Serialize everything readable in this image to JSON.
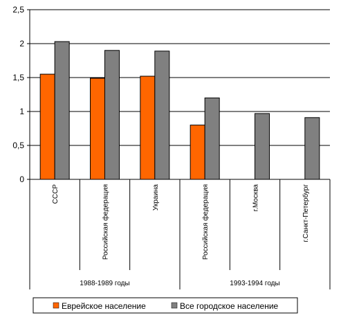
{
  "chart_data": {
    "type": "bar",
    "categories": [
      "СССР",
      "Российская федерация",
      "Украина",
      "Российская федерация",
      "г.Москва",
      "г.Санкт-Петербург"
    ],
    "groups": [
      {
        "label": "1988-1989 годы",
        "categories": [
          "СССР",
          "Российская федерация",
          "Украина"
        ]
      },
      {
        "label": "1993-1994 годы",
        "categories": [
          "Российская федерация",
          "г.Москва",
          "г.Санкт-Петербург"
        ]
      }
    ],
    "series": [
      {
        "name": "Еврейское население",
        "color": "#ff6600",
        "values": [
          1.55,
          1.49,
          1.52,
          0.8,
          null,
          null
        ]
      },
      {
        "name": "Все городское население",
        "color": "#808080",
        "values": [
          2.03,
          1.9,
          1.89,
          1.2,
          0.97,
          0.91
        ]
      }
    ],
    "yticks": [
      "0",
      "0,5",
      "1",
      "1,5",
      "2",
      "2,5"
    ],
    "ylim": [
      0,
      2.5
    ],
    "grid": true,
    "legend_position": "bottom"
  }
}
